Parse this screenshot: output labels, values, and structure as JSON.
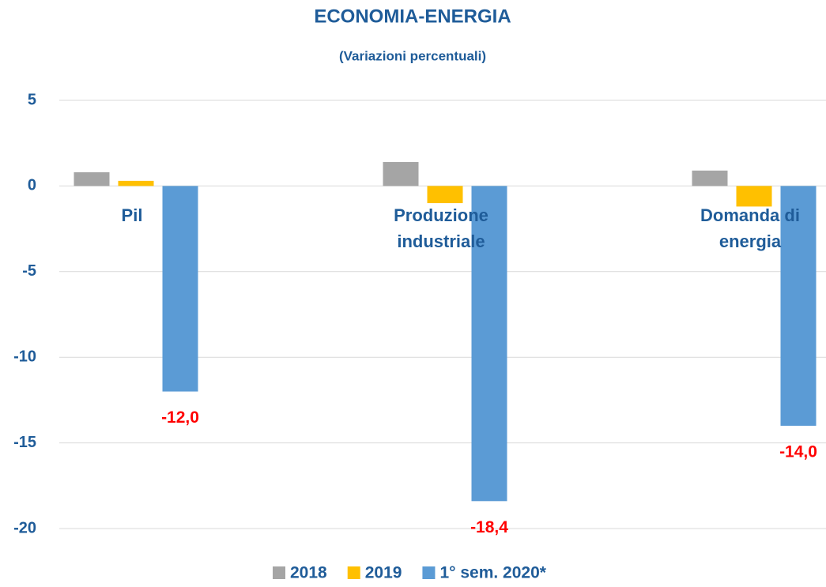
{
  "chart_data": {
    "type": "bar",
    "title": "ECONOMIA-ENERGIA",
    "subtitle": "(Variazioni percentuali)",
    "categories": [
      "Pil",
      "Produzione industriale",
      "Domanda di energia"
    ],
    "series": [
      {
        "name": "2018",
        "color": "#a5a5a5",
        "values": [
          0.8,
          1.4,
          0.9
        ]
      },
      {
        "name": "2019",
        "color": "#ffc000",
        "values": [
          0.3,
          -1.0,
          -1.2
        ]
      },
      {
        "name": "1° sem. 2020*",
        "color": "#5b9bd5",
        "values": [
          -12.0,
          -18.4,
          -14.0
        ],
        "value_labels": [
          "-12,0",
          "-18,4",
          "-14,0"
        ]
      }
    ],
    "ylim": [
      -20,
      5
    ],
    "yticks": [
      5,
      0,
      -5,
      -10,
      -15,
      -20
    ],
    "grid": true,
    "legend": "bottom"
  }
}
